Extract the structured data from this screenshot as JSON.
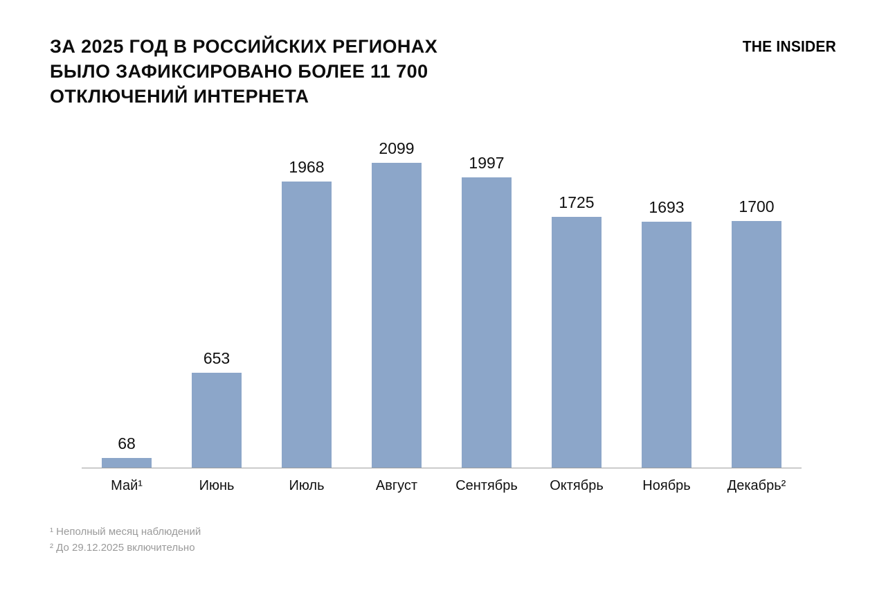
{
  "header": {
    "title": {
      "line1": "ЗА 2025 ГОД В РОССИЙСКИХ РЕГИОНАХ",
      "line2": "БЫЛО ЗАФИКСИРОВАНО БОЛЕЕ 11 700",
      "line3": "ОТКЛЮЧЕНИЙ ИНТЕРНЕТА"
    },
    "logo": "THE INSIDER"
  },
  "chart_data": {
    "type": "bar",
    "title": "ЗА 2025 ГОД В РОССИЙСКИХ РЕГИОНАХ БЫЛО ЗАФИКСИРОВАНО БОЛЕЕ 11 700 ОТКЛЮЧЕНИЙ ИНТЕРНЕТА",
    "categories": [
      "Май¹",
      "Июнь",
      "Июль",
      "Август",
      "Сентябрь",
      "Октябрь",
      "Ноябрь",
      "Декабрь²"
    ],
    "values": [
      68,
      653,
      1968,
      2099,
      1997,
      1725,
      1693,
      1700
    ],
    "xlabel": "",
    "ylabel": "",
    "ylim": [
      0,
      2099
    ],
    "grid": false,
    "legend": false,
    "data_labels": true,
    "bar_color": "#8ca6c9",
    "axis_line_color": "#9e9e9e"
  },
  "footnotes": [
    "¹ Неполный месяц наблюдений",
    "² До 29.12.2025 включительно"
  ]
}
